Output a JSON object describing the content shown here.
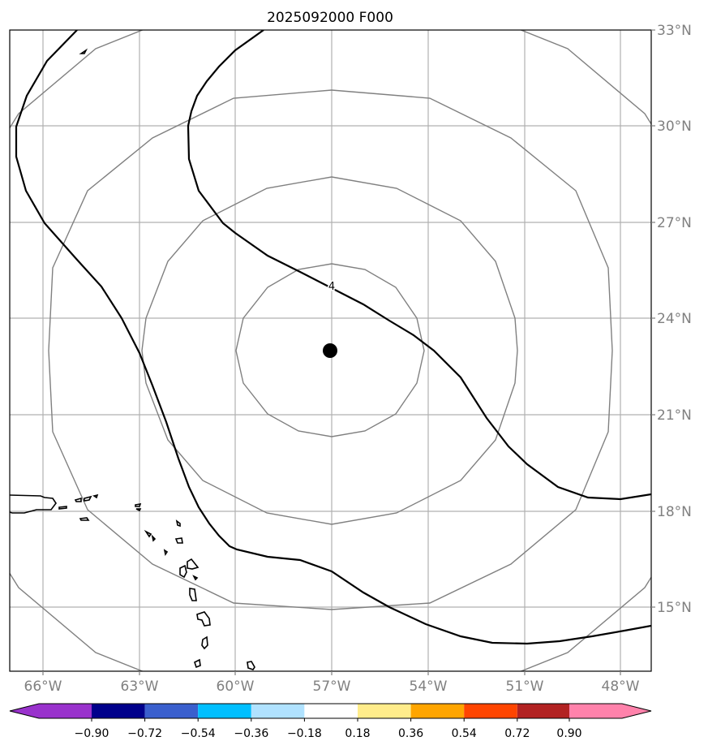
{
  "title": "2025092000 F000",
  "map": {
    "lon_labels": [
      "66°W",
      "63°W",
      "60°W",
      "57°W",
      "54°W",
      "51°W",
      "48°W"
    ],
    "lat_labels": [
      "33°N",
      "30°N",
      "27°N",
      "24°N",
      "21°N",
      "18°N",
      "15°N"
    ],
    "center_marker": {
      "lon": -57.0,
      "lat": 23.0
    },
    "contour_label": "4"
  },
  "colorbar": {
    "ticks": [
      "−0.90",
      "−0.72",
      "−0.54",
      "−0.36",
      "−0.18",
      "0.18",
      "0.36",
      "0.54",
      "0.72",
      "0.90"
    ],
    "colors": [
      "#9932cc",
      "#00008b",
      "#3a5fcd",
      "#00bfff",
      "#b0e2ff",
      "#ffffff",
      "#ffec8b",
      "#ffa500",
      "#ff4500",
      "#b22222",
      "#ff82ab"
    ]
  }
}
